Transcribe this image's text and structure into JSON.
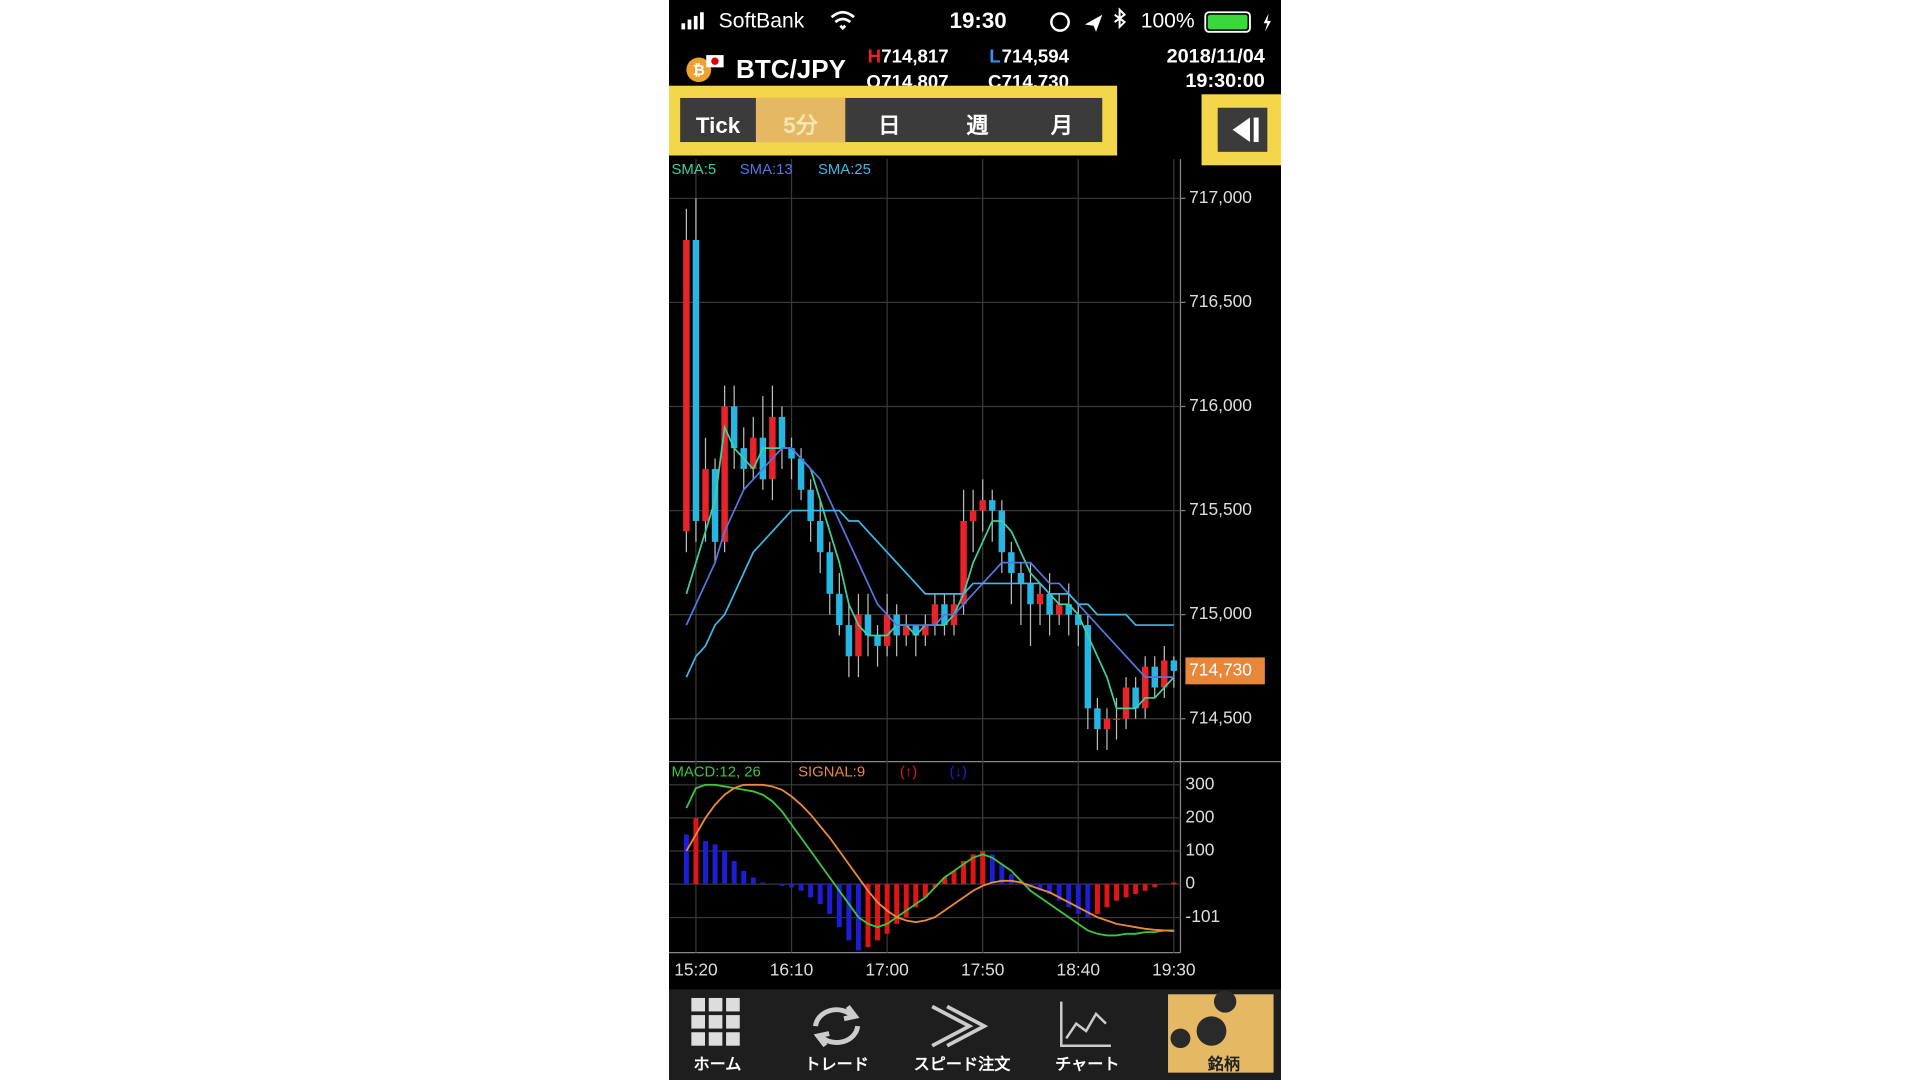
{
  "status_bar": {
    "carrier": "SoftBank",
    "time": "19:30",
    "battery": "100%"
  },
  "header": {
    "symbol": "BTC/JPY",
    "high_prefix": "H",
    "high": "714,817",
    "low_prefix": "L",
    "low": "714,594",
    "open_prefix": "O",
    "open": "714,807",
    "close_prefix": "C",
    "close": "714,730",
    "date": "2018/11/04",
    "time": "19:30:00"
  },
  "tabs": [
    "Tick",
    "5分",
    "日",
    "週",
    "月"
  ],
  "active_tab": 1,
  "nav": [
    "ホーム",
    "トレード",
    "スピード注文",
    "チャート",
    "銘柄"
  ],
  "chart_data": [
    {
      "type": "candlestick",
      "up_color": "#e8232a",
      "down_color": "#27b6e2",
      "open": [
        715400,
        716800,
        715450,
        715700,
        715350,
        716000,
        715800,
        715700,
        715850,
        715650,
        715950,
        715800,
        715750,
        715600,
        715450,
        715300,
        715100,
        714950,
        714800,
        715000,
        714900,
        714850,
        715000,
        714900,
        714950,
        714900,
        714950,
        715050,
        714950,
        715050,
        715450,
        715500,
        715550,
        715500,
        715300,
        715200,
        715150,
        715050,
        715100,
        715000,
        715050,
        715000,
        714950,
        714550,
        714450,
        714500,
        714500,
        714650,
        714550,
        714750,
        714650,
        714780
      ],
      "high": [
        716950,
        717000,
        715850,
        715750,
        716100,
        716100,
        715900,
        715950,
        716050,
        716100,
        716000,
        715850,
        715800,
        715650,
        715550,
        715350,
        715200,
        715050,
        715100,
        715100,
        714950,
        715100,
        715050,
        715000,
        714950,
        715000,
        715100,
        715100,
        715100,
        715600,
        715600,
        715650,
        715600,
        715550,
        715350,
        715250,
        715250,
        715150,
        715200,
        715100,
        715150,
        715050,
        715000,
        714600,
        714550,
        714600,
        714700,
        714700,
        714800,
        714800,
        714850,
        714800
      ],
      "low": [
        715300,
        715350,
        715350,
        715250,
        715300,
        715700,
        715600,
        715650,
        715600,
        715550,
        715700,
        715650,
        715550,
        715350,
        715200,
        715000,
        714900,
        714700,
        714700,
        714800,
        714750,
        714800,
        714800,
        714850,
        714800,
        714850,
        714900,
        714900,
        714900,
        715000,
        715300,
        715400,
        715350,
        715200,
        715050,
        714950,
        714850,
        714950,
        714900,
        714950,
        714900,
        714850,
        714450,
        714350,
        714350,
        714400,
        714450,
        714500,
        714500,
        714600,
        714600,
        714650
      ],
      "close": [
        716800,
        715450,
        715700,
        715350,
        716000,
        715800,
        715700,
        715850,
        715650,
        715950,
        715800,
        715750,
        715600,
        715450,
        715300,
        715100,
        714950,
        714800,
        715000,
        714900,
        714850,
        715000,
        714900,
        714950,
        714900,
        714950,
        715050,
        714950,
        715050,
        715450,
        715500,
        715550,
        715500,
        715300,
        715200,
        715150,
        715050,
        715100,
        715000,
        715050,
        715000,
        714950,
        714550,
        714450,
        714500,
        714500,
        714650,
        714550,
        714750,
        714650,
        714780,
        714730
      ],
      "series": [
        {
          "name": "SMA:5",
          "color": "#3fd0a0",
          "values": [
            715100,
            715250,
            715400,
            715550,
            715900,
            715800,
            715750,
            715700,
            715800,
            715800,
            715800,
            715800,
            715750,
            715700,
            715550,
            715400,
            715250,
            715050,
            714950,
            714900,
            714900,
            714900,
            714950,
            714950,
            714900,
            714950,
            714950,
            714950,
            715000,
            715100,
            715250,
            715350,
            715450,
            715450,
            715400,
            715300,
            715200,
            715150,
            715100,
            715050,
            715050,
            715000,
            714900,
            714800,
            714700,
            714550,
            714550,
            714550,
            714600,
            714600,
            714650,
            714700
          ]
        },
        {
          "name": "SMA:13",
          "color": "#5079e0",
          "values": [
            714950,
            715050,
            715150,
            715250,
            715400,
            715500,
            715600,
            715650,
            715700,
            715750,
            715800,
            715800,
            715750,
            715700,
            715650,
            715550,
            715450,
            715350,
            715250,
            715150,
            715050,
            715000,
            714950,
            714950,
            714950,
            714950,
            714950,
            715000,
            715000,
            715050,
            715100,
            715150,
            715200,
            715250,
            715250,
            715250,
            715250,
            715200,
            715150,
            715150,
            715100,
            715050,
            715000,
            714950,
            714900,
            714850,
            714800,
            714750,
            714700,
            714700,
            714700,
            714700
          ]
        },
        {
          "name": "SMA:25",
          "color": "#3fb8e6",
          "values": [
            714700,
            714800,
            714850,
            714950,
            715000,
            715100,
            715200,
            715300,
            715350,
            715400,
            715450,
            715500,
            715500,
            715500,
            715500,
            715500,
            715500,
            715450,
            715450,
            715400,
            715350,
            715300,
            715250,
            715200,
            715150,
            715100,
            715100,
            715100,
            715100,
            715100,
            715150,
            715150,
            715150,
            715150,
            715150,
            715150,
            715150,
            715150,
            715100,
            715100,
            715100,
            715050,
            715050,
            715000,
            715000,
            715000,
            715000,
            714950,
            714950,
            714950,
            714950,
            714950
          ]
        }
      ],
      "ylim": [
        714294,
        717188
      ],
      "yticks": [
        {
          "value": 717000,
          "label": "717,000"
        },
        {
          "value": 716500,
          "label": "716,500"
        },
        {
          "value": 716000,
          "label": "716,000"
        },
        {
          "value": 715500,
          "label": "715,500"
        },
        {
          "value": 715000,
          "label": "715,000"
        },
        {
          "value": 714500,
          "label": "714,500"
        }
      ],
      "last_value_label": "714,730",
      "last_color": "#e8873a",
      "grid": true
    },
    {
      "type": "macd",
      "categories": [
        null,
        "15:20",
        null,
        null,
        null,
        null,
        null,
        null,
        null,
        null,
        null,
        "16:10",
        null,
        null,
        null,
        null,
        null,
        null,
        null,
        null,
        null,
        "17:00",
        null,
        null,
        null,
        null,
        null,
        null,
        null,
        null,
        null,
        "17:50",
        null,
        null,
        null,
        null,
        null,
        null,
        null,
        null,
        null,
        "18:40",
        null,
        null,
        null,
        null,
        null,
        null,
        null,
        null,
        null,
        "19:30"
      ],
      "series": [
        {
          "name": "MACD:12, 26",
          "color": "#3ec43e",
          "values": [
            230,
            290,
            300,
            300,
            295,
            290,
            285,
            280,
            270,
            250,
            220,
            180,
            140,
            100,
            60,
            20,
            -20,
            -60,
            -100,
            -120,
            -130,
            -120,
            -100,
            -80,
            -60,
            -40,
            -10,
            20,
            40,
            60,
            80,
            90,
            80,
            60,
            40,
            10,
            -20,
            -40,
            -60,
            -80,
            -100,
            -120,
            -140,
            -150,
            -155,
            -155,
            -150,
            -150,
            -145,
            -145,
            -140,
            -140
          ]
        },
        {
          "name": "SIGNAL:9",
          "color": "#e8893c",
          "values": [
            100,
            150,
            200,
            240,
            270,
            290,
            300,
            300,
            300,
            295,
            285,
            265,
            240,
            210,
            175,
            140,
            100,
            60,
            20,
            -20,
            -55,
            -80,
            -100,
            -110,
            -115,
            -110,
            -100,
            -80,
            -60,
            -40,
            -20,
            -5,
            5,
            10,
            10,
            5,
            -5,
            -15,
            -25,
            -40,
            -55,
            -70,
            -85,
            -100,
            -110,
            -120,
            -125,
            -130,
            -135,
            -138,
            -140,
            -142
          ]
        }
      ],
      "histogram": {
        "values": [
          150,
          200,
          130,
          120,
          100,
          70,
          40,
          20,
          5,
          0,
          -5,
          -10,
          -20,
          -40,
          -60,
          -90,
          -130,
          -170,
          -200,
          -190,
          -170,
          -150,
          -120,
          -100,
          -70,
          -40,
          -10,
          20,
          40,
          70,
          90,
          100,
          90,
          60,
          30,
          5,
          -10,
          -20,
          -30,
          -50,
          -70,
          -90,
          -100,
          -90,
          -70,
          -50,
          -40,
          -30,
          -20,
          -10,
          0,
          5
        ],
        "up_label": "(↑)",
        "down_label": "(↓)",
        "up_color": "#e01515",
        "down_color": "#1d1dd6"
      },
      "ylim": [
        -207,
        370
      ],
      "yticks": [
        300,
        200,
        100,
        0,
        -101
      ],
      "grid": true
    }
  ]
}
